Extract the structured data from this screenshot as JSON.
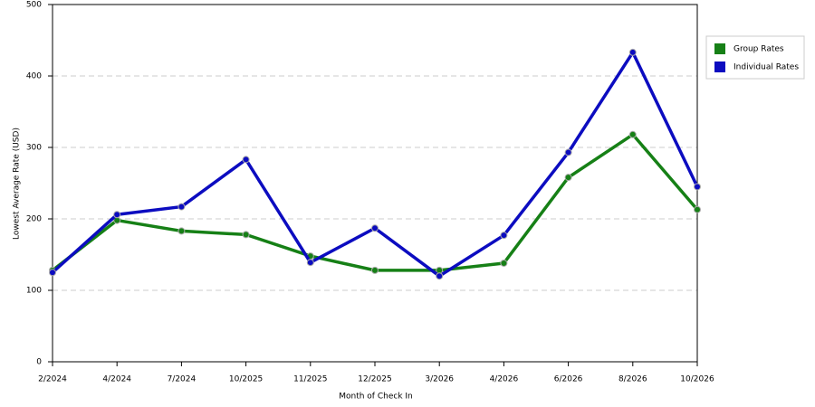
{
  "chart_data": {
    "type": "line",
    "x_label": "Month of Check In",
    "y_label": "Lowest Average Rate (USD)",
    "categories": [
      "2/2024",
      "4/2024",
      "7/2024",
      "10/2025",
      "11/2025",
      "12/2025",
      "3/2026",
      "4/2026",
      "6/2026",
      "8/2026",
      "10/2026"
    ],
    "series": [
      {
        "name": "Group Rates",
        "color": "#168016",
        "values": [
          128,
          198,
          183,
          178,
          148,
          128,
          128,
          138,
          258,
          318,
          213
        ]
      },
      {
        "name": "Individual Rates",
        "color": "#0c0cc0",
        "values": [
          125,
          206,
          217,
          283,
          139,
          187,
          120,
          177,
          293,
          433,
          245
        ]
      }
    ],
    "ylim": [
      0,
      500
    ],
    "yticks": [
      0,
      100,
      200,
      300,
      400,
      500
    ],
    "grid": true,
    "legend": "right"
  }
}
